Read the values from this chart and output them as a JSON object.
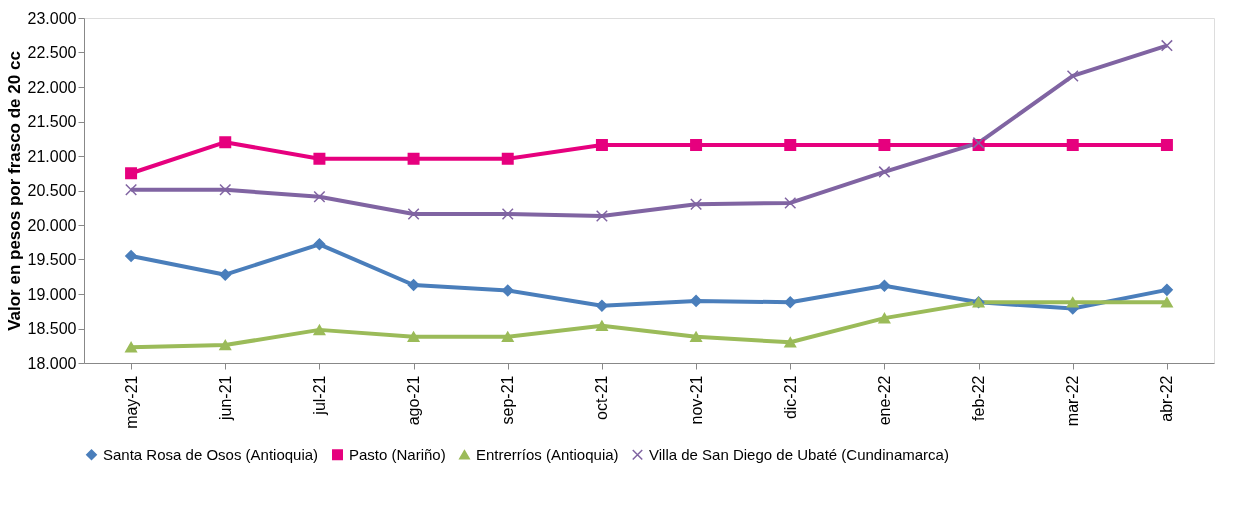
{
  "chart_data": {
    "type": "line",
    "ylabel": "Valor en pesos por frasco de 20 cc",
    "categories": [
      "may-21",
      "jun-21",
      "jul-21",
      "ago-21",
      "sep-21",
      "oct-21",
      "nov-21",
      "dic-21",
      "ene-22",
      "feb-22",
      "mar-22",
      "abr-22"
    ],
    "series": [
      {
        "name": "Santa Rosa de Osos (Antioquia)",
        "color": "#4a7ebb",
        "marker": "diamond",
        "values": [
          19550,
          19280,
          19720,
          19130,
          19050,
          18830,
          18900,
          18880,
          19120,
          18880,
          18790,
          19060
        ]
      },
      {
        "name": "Pasto (Nariño)",
        "color": "#e6007e",
        "marker": "square",
        "values": [
          20750,
          21200,
          20960,
          20960,
          20960,
          21160,
          21160,
          21160,
          21160,
          21160,
          21160,
          21160
        ]
      },
      {
        "name": "Entrerríos (Antioquia)",
        "color": "#9bbb59",
        "marker": "triangle",
        "values": [
          18230,
          18260,
          18480,
          18380,
          18380,
          18540,
          18380,
          18300,
          18650,
          18880,
          18880,
          18880
        ]
      },
      {
        "name": "Villa de San Diego de Ubaté (Cundinamarca)",
        "color": "#8064a2",
        "marker": "cross",
        "values": [
          20510,
          20510,
          20410,
          20160,
          20160,
          20130,
          20300,
          20320,
          20770,
          21190,
          22160,
          22600
        ]
      }
    ],
    "ylim": [
      18000,
      23000
    ],
    "yticks": [
      {
        "value": 18000,
        "label": "18.000"
      },
      {
        "value": 18500,
        "label": "18.500"
      },
      {
        "value": 19000,
        "label": "19.000"
      },
      {
        "value": 19500,
        "label": "19.500"
      },
      {
        "value": 20000,
        "label": "20.000"
      },
      {
        "value": 20500,
        "label": "20.500"
      },
      {
        "value": 21000,
        "label": "21.000"
      },
      {
        "value": 21500,
        "label": "21.500"
      },
      {
        "value": 22000,
        "label": "22.000"
      },
      {
        "value": 22500,
        "label": "22.500"
      },
      {
        "value": 23000,
        "label": "23.000"
      }
    ],
    "legend": "bottom",
    "grid": false,
    "line_style": "solid"
  }
}
